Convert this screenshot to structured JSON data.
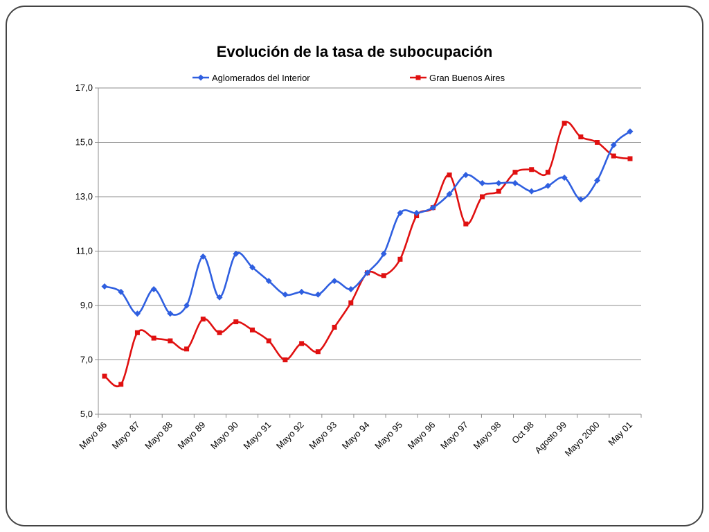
{
  "chart_data": {
    "type": "line",
    "title": "Evolución de la tasa de subocupación",
    "xlabel": "",
    "ylabel": "",
    "ylim": [
      5,
      17
    ],
    "yticks": [
      "5,0",
      "7,0",
      "9,0",
      "11,0",
      "13,0",
      "15,0",
      "17,0"
    ],
    "ytick_values": [
      5,
      7,
      9,
      11,
      13,
      15,
      17
    ],
    "x_tick_labels": [
      "Mayo 86",
      "Mayo 87",
      "Mayo 88",
      "Mayo 89",
      "Mayo 90",
      "Mayo 91",
      "Mayo 92",
      "Mayo 93",
      "Mayo 94",
      "Mayo 95",
      "Mayo 96",
      "Mayo 97",
      "Mayo 98",
      "Oct 98",
      "Agosto 99",
      "Mayo 2000",
      "May 01"
    ],
    "grid": true,
    "legend_position": "top",
    "series": [
      {
        "name": "Aglomerados del Interior",
        "color": "#2f5fe0",
        "marker": "diamond",
        "values": [
          9.7,
          9.5,
          8.7,
          9.6,
          8.7,
          9.0,
          10.8,
          9.3,
          10.9,
          10.4,
          9.9,
          9.4,
          9.5,
          9.4,
          9.9,
          9.6,
          10.2,
          10.9,
          12.4,
          12.4,
          12.6,
          13.1,
          13.8,
          13.5,
          13.5,
          13.5,
          13.2,
          13.4,
          13.7,
          12.9,
          13.6,
          14.9,
          15.4
        ]
      },
      {
        "name": "Gran Buenos Aires",
        "color": "#e01010",
        "marker": "square",
        "values": [
          6.4,
          6.1,
          8.0,
          7.8,
          7.7,
          7.4,
          8.5,
          8.0,
          8.4,
          8.1,
          7.7,
          7.0,
          7.6,
          7.3,
          8.2,
          9.1,
          10.2,
          10.1,
          10.7,
          12.3,
          12.6,
          13.8,
          12.0,
          13.0,
          13.2,
          13.9,
          14.0,
          13.9,
          15.7,
          15.2,
          15.0,
          14.5,
          14.4
        ]
      }
    ]
  }
}
